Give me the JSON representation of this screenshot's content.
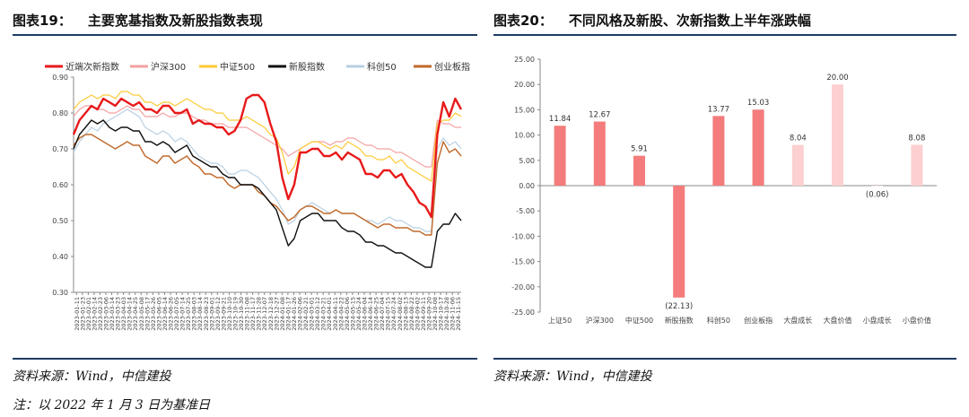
{
  "left_figure": {
    "number": "图表19：",
    "title": "主要宽基指数及新股指数表现",
    "source": "资料来源：Wind，中信建投",
    "note": "注：以 2022 年 1 月 3 日为基准日"
  },
  "right_figure": {
    "number": "图表20：",
    "title": "不同风格及新股、次新指数上半年涨跌幅",
    "source": "资料来源：Wind，中信建投"
  },
  "chart_data": [
    {
      "type": "line",
      "title": "主要宽基指数及新股指数表现",
      "ylim": [
        0.3,
        0.9
      ],
      "y_ticks": [
        "0.30",
        "0.40",
        "0.50",
        "0.60",
        "0.70",
        "0.80",
        "0.90"
      ],
      "x_tick_labels": [
        "2023-01-11",
        "2023-01-23",
        "2023-02-01",
        "2023-02-14",
        "2023-02-23",
        "2023-03-06",
        "2023-03-14",
        "2023-03-23",
        "2023-04-03",
        "2023-04-14",
        "2023-04-25",
        "2023-05-08",
        "2023-05-17",
        "2023-05-26",
        "2023-06-05",
        "2023-06-14",
        "2023-06-26",
        "2023-07-05",
        "2023-07-14",
        "2023-07-25",
        "2023-08-03",
        "2023-08-14",
        "2023-08-23",
        "2023-09-01",
        "2023-09-12",
        "2023-09-21",
        "2023-10-10",
        "2023-10-19",
        "2023-10-30",
        "2023-11-08",
        "2023-11-17",
        "2023-11-28",
        "2023-12-07",
        "2023-12-18",
        "2023-12-27",
        "2024-01-08",
        "2024-01-17",
        "2024-01-26",
        "2024-02-06",
        "2024-02-21",
        "2024-03-01",
        "2024-03-12",
        "2024-03-21",
        "2024-04-01",
        "2024-04-11",
        "2024-04-22",
        "2024-05-06",
        "2024-05-15",
        "2024-05-24",
        "2024-06-04",
        "2024-06-14",
        "2024-06-25",
        "2024-07-04",
        "2024-07-15",
        "2024-07-24",
        "2024-08-02",
        "2024-08-13",
        "2024-08-22",
        "2024-09-02",
        "2024-09-11",
        "2024-09-20",
        "2024-10-08",
        "2024-10-17",
        "2024-10-28",
        "2024-11-06",
        "2024-11-15"
      ],
      "series": [
        {
          "name": "近端次新指数",
          "color": "#e8191a",
          "width": 2.4,
          "values": [
            0.74,
            0.78,
            0.8,
            0.82,
            0.81,
            0.84,
            0.83,
            0.82,
            0.84,
            0.83,
            0.82,
            0.83,
            0.81,
            0.81,
            0.8,
            0.82,
            0.82,
            0.8,
            0.8,
            0.81,
            0.77,
            0.78,
            0.77,
            0.77,
            0.76,
            0.76,
            0.74,
            0.75,
            0.78,
            0.84,
            0.85,
            0.85,
            0.83,
            0.77,
            0.72,
            0.62,
            0.56,
            0.6,
            0.69,
            0.69,
            0.7,
            0.7,
            0.68,
            0.68,
            0.69,
            0.67,
            0.69,
            0.68,
            0.67,
            0.63,
            0.63,
            0.62,
            0.64,
            0.64,
            0.62,
            0.63,
            0.6,
            0.58,
            0.55,
            0.54,
            0.51,
            0.74,
            0.83,
            0.79,
            0.84,
            0.81
          ]
        },
        {
          "name": "沪深300",
          "color": "#f4a0a0",
          "width": 1.2,
          "values": [
            0.79,
            0.81,
            0.82,
            0.82,
            0.81,
            0.81,
            0.8,
            0.8,
            0.81,
            0.82,
            0.81,
            0.81,
            0.79,
            0.79,
            0.79,
            0.8,
            0.79,
            0.79,
            0.8,
            0.8,
            0.79,
            0.78,
            0.78,
            0.77,
            0.77,
            0.77,
            0.76,
            0.76,
            0.76,
            0.76,
            0.75,
            0.74,
            0.73,
            0.72,
            0.71,
            0.7,
            0.68,
            0.69,
            0.7,
            0.71,
            0.72,
            0.72,
            0.72,
            0.71,
            0.72,
            0.72,
            0.73,
            0.73,
            0.72,
            0.71,
            0.71,
            0.7,
            0.7,
            0.7,
            0.69,
            0.69,
            0.68,
            0.67,
            0.66,
            0.65,
            0.65,
            0.78,
            0.77,
            0.77,
            0.76,
            0.76
          ]
        },
        {
          "name": "中证500",
          "color": "#fcc935",
          "width": 1.2,
          "values": [
            0.81,
            0.83,
            0.84,
            0.85,
            0.84,
            0.85,
            0.85,
            0.84,
            0.86,
            0.86,
            0.85,
            0.85,
            0.83,
            0.83,
            0.82,
            0.83,
            0.83,
            0.82,
            0.83,
            0.84,
            0.83,
            0.82,
            0.81,
            0.81,
            0.8,
            0.8,
            0.78,
            0.78,
            0.78,
            0.79,
            0.78,
            0.77,
            0.76,
            0.74,
            0.73,
            0.69,
            0.63,
            0.65,
            0.7,
            0.71,
            0.72,
            0.72,
            0.71,
            0.7,
            0.71,
            0.7,
            0.72,
            0.71,
            0.7,
            0.68,
            0.68,
            0.67,
            0.67,
            0.68,
            0.66,
            0.67,
            0.65,
            0.64,
            0.63,
            0.62,
            0.61,
            0.77,
            0.78,
            0.78,
            0.8,
            0.79
          ]
        },
        {
          "name": "新股指数",
          "color": "#111111",
          "width": 1.4,
          "values": [
            0.7,
            0.74,
            0.76,
            0.78,
            0.77,
            0.78,
            0.76,
            0.75,
            0.76,
            0.76,
            0.75,
            0.75,
            0.72,
            0.72,
            0.71,
            0.72,
            0.71,
            0.69,
            0.7,
            0.71,
            0.68,
            0.67,
            0.66,
            0.65,
            0.65,
            0.63,
            0.62,
            0.62,
            0.6,
            0.6,
            0.6,
            0.59,
            0.57,
            0.55,
            0.53,
            0.48,
            0.43,
            0.45,
            0.5,
            0.51,
            0.52,
            0.52,
            0.5,
            0.5,
            0.5,
            0.48,
            0.47,
            0.47,
            0.46,
            0.44,
            0.44,
            0.43,
            0.43,
            0.42,
            0.41,
            0.41,
            0.4,
            0.39,
            0.38,
            0.37,
            0.37,
            0.47,
            0.49,
            0.49,
            0.52,
            0.5
          ]
        },
        {
          "name": "科创50",
          "color": "#b8cfe2",
          "width": 1.2,
          "values": [
            0.69,
            0.72,
            0.74,
            0.76,
            0.75,
            0.77,
            0.78,
            0.79,
            0.8,
            0.81,
            0.8,
            0.79,
            0.76,
            0.75,
            0.74,
            0.75,
            0.74,
            0.72,
            0.73,
            0.72,
            0.7,
            0.68,
            0.67,
            0.66,
            0.66,
            0.65,
            0.63,
            0.63,
            0.64,
            0.64,
            0.63,
            0.62,
            0.6,
            0.58,
            0.56,
            0.53,
            0.49,
            0.5,
            0.53,
            0.54,
            0.55,
            0.54,
            0.53,
            0.52,
            0.53,
            0.52,
            0.52,
            0.52,
            0.51,
            0.5,
            0.5,
            0.49,
            0.5,
            0.51,
            0.5,
            0.5,
            0.49,
            0.48,
            0.48,
            0.47,
            0.47,
            0.7,
            0.73,
            0.71,
            0.72,
            0.7
          ]
        },
        {
          "name": "创业板指",
          "color": "#c0692a",
          "width": 1.4,
          "values": [
            0.71,
            0.73,
            0.74,
            0.74,
            0.73,
            0.72,
            0.71,
            0.7,
            0.71,
            0.72,
            0.71,
            0.71,
            0.68,
            0.67,
            0.66,
            0.68,
            0.68,
            0.66,
            0.67,
            0.68,
            0.66,
            0.65,
            0.63,
            0.63,
            0.62,
            0.62,
            0.6,
            0.59,
            0.6,
            0.6,
            0.6,
            0.58,
            0.57,
            0.55,
            0.54,
            0.52,
            0.5,
            0.51,
            0.53,
            0.54,
            0.54,
            0.53,
            0.52,
            0.52,
            0.53,
            0.52,
            0.52,
            0.52,
            0.51,
            0.5,
            0.49,
            0.48,
            0.49,
            0.49,
            0.48,
            0.48,
            0.48,
            0.47,
            0.47,
            0.46,
            0.46,
            0.66,
            0.72,
            0.69,
            0.7,
            0.68
          ]
        }
      ]
    },
    {
      "type": "bar",
      "title": "不同风格及新股、次新指数上半年涨跌幅",
      "ylim": [
        -25,
        25
      ],
      "y_ticks": [
        "25.00",
        "20.00",
        "15.00",
        "10.00",
        "5.00",
        "0.00",
        "-5.00",
        "-10.00",
        "-15.00",
        "-20.00",
        "-25.00"
      ],
      "categories": [
        "上证50",
        "沪深300",
        "中证500",
        "新股指数",
        "科创50",
        "创业板指",
        "大盘成长",
        "大盘价值",
        "小盘成长",
        "小盘价值"
      ],
      "values": [
        11.84,
        12.67,
        5.91,
        -22.13,
        13.77,
        15.03,
        8.04,
        20.0,
        -0.06,
        8.08
      ],
      "value_labels": [
        "11.84",
        "12.67",
        "5.91",
        "(22.13)",
        "13.77",
        "15.03",
        "8.04",
        "20.00",
        "(0.06)",
        "8.08"
      ],
      "bar_colors": [
        "#f47c7c",
        "#f47c7c",
        "#f47c7c",
        "#f47c7c",
        "#f47c7c",
        "#f47c7c",
        "#fcd0d0",
        "#fcd0d0",
        "#fcd0d0",
        "#fcd0d0"
      ],
      "negative_label_color": "#e8191a"
    }
  ]
}
